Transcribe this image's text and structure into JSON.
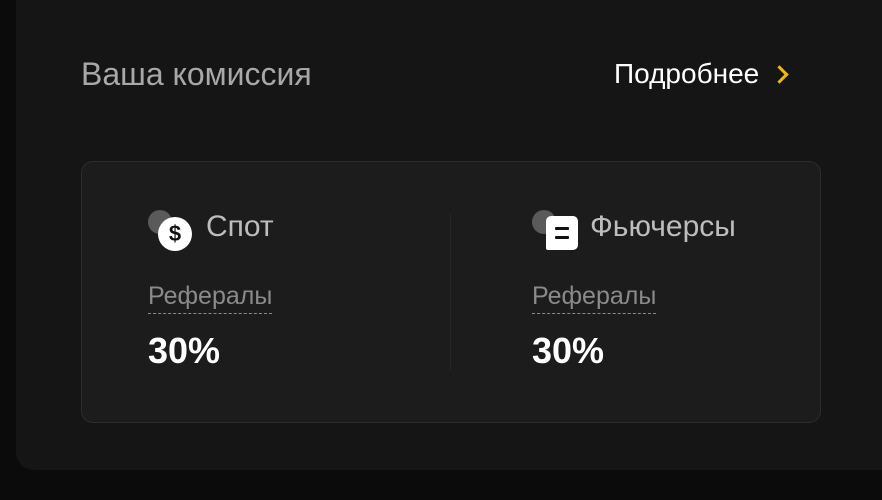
{
  "header": {
    "title": "Ваша комиссия",
    "details_link": "Подробнее"
  },
  "accent_color": "#f0b90b",
  "products": [
    {
      "name": "Спот",
      "icon": "dollar-coin-icon",
      "label": "Рефералы",
      "value": "30%"
    },
    {
      "name": "Фьючерсы",
      "icon": "document-icon",
      "label": "Рефералы",
      "value": "30%"
    }
  ]
}
